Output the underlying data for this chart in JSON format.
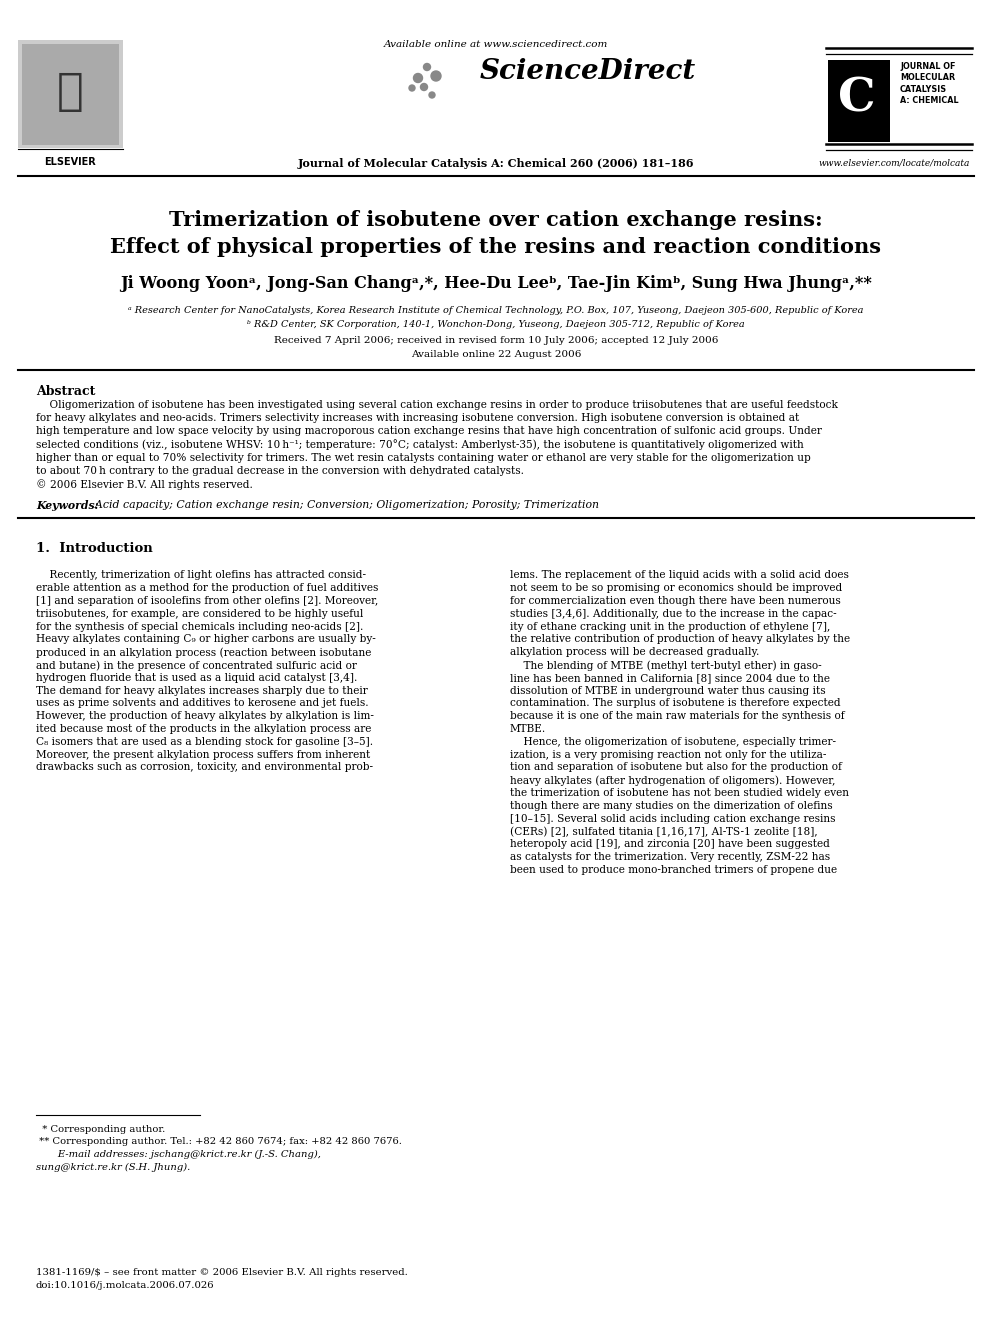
{
  "background_color": "#ffffff",
  "available_online": "Available online at www.sciencedirect.com",
  "journal_name": "Journal of Molecular Catalysis A: Chemical 260 (2006) 181–186",
  "website": "www.elsevier.com/locate/molcata",
  "title_line1": "Trimerization of isobutene over cation exchange resins:",
  "title_line2": "Effect of physical properties of the resins and reaction conditions",
  "affil1": "ᵃ Research Center for NanoCatalysts, Korea Research Institute of Chemical Technology, P.O. Box, 107, Yuseong, Daejeon 305-600, Republic of Korea",
  "affil2": "ᵇ R&D Center, SK Corporation, 140-1, Wonchon-Dong, Yuseong, Daejeon 305-712, Republic of Korea",
  "received": "Received 7 April 2006; received in revised form 10 July 2006; accepted 12 July 2006",
  "available": "Available online 22 August 2006",
  "abstract_title": "Abstract",
  "keywords_label": "Keywords:",
  "keywords_text": "  Acid capacity; Cation exchange resin; Conversion; Oligomerization; Porosity; Trimerization",
  "section1_title": "1.  Introduction",
  "footnote_star": "  * Corresponding author.",
  "footnote_dstar": " ** Corresponding author. Tel.: +82 42 860 7674; fax: +82 42 860 7676.",
  "footnote_email": "       E-mail addresses: jschang@krict.re.kr (J.-S. Chang),",
  "footnote_email2": "sung@krict.re.kr (S.H. Jhung).",
  "footer_issn": "1381-1169/$ – see front matter © 2006 Elsevier B.V. All rights reserved.",
  "footer_doi": "doi:10.1016/j.molcata.2006.07.026"
}
